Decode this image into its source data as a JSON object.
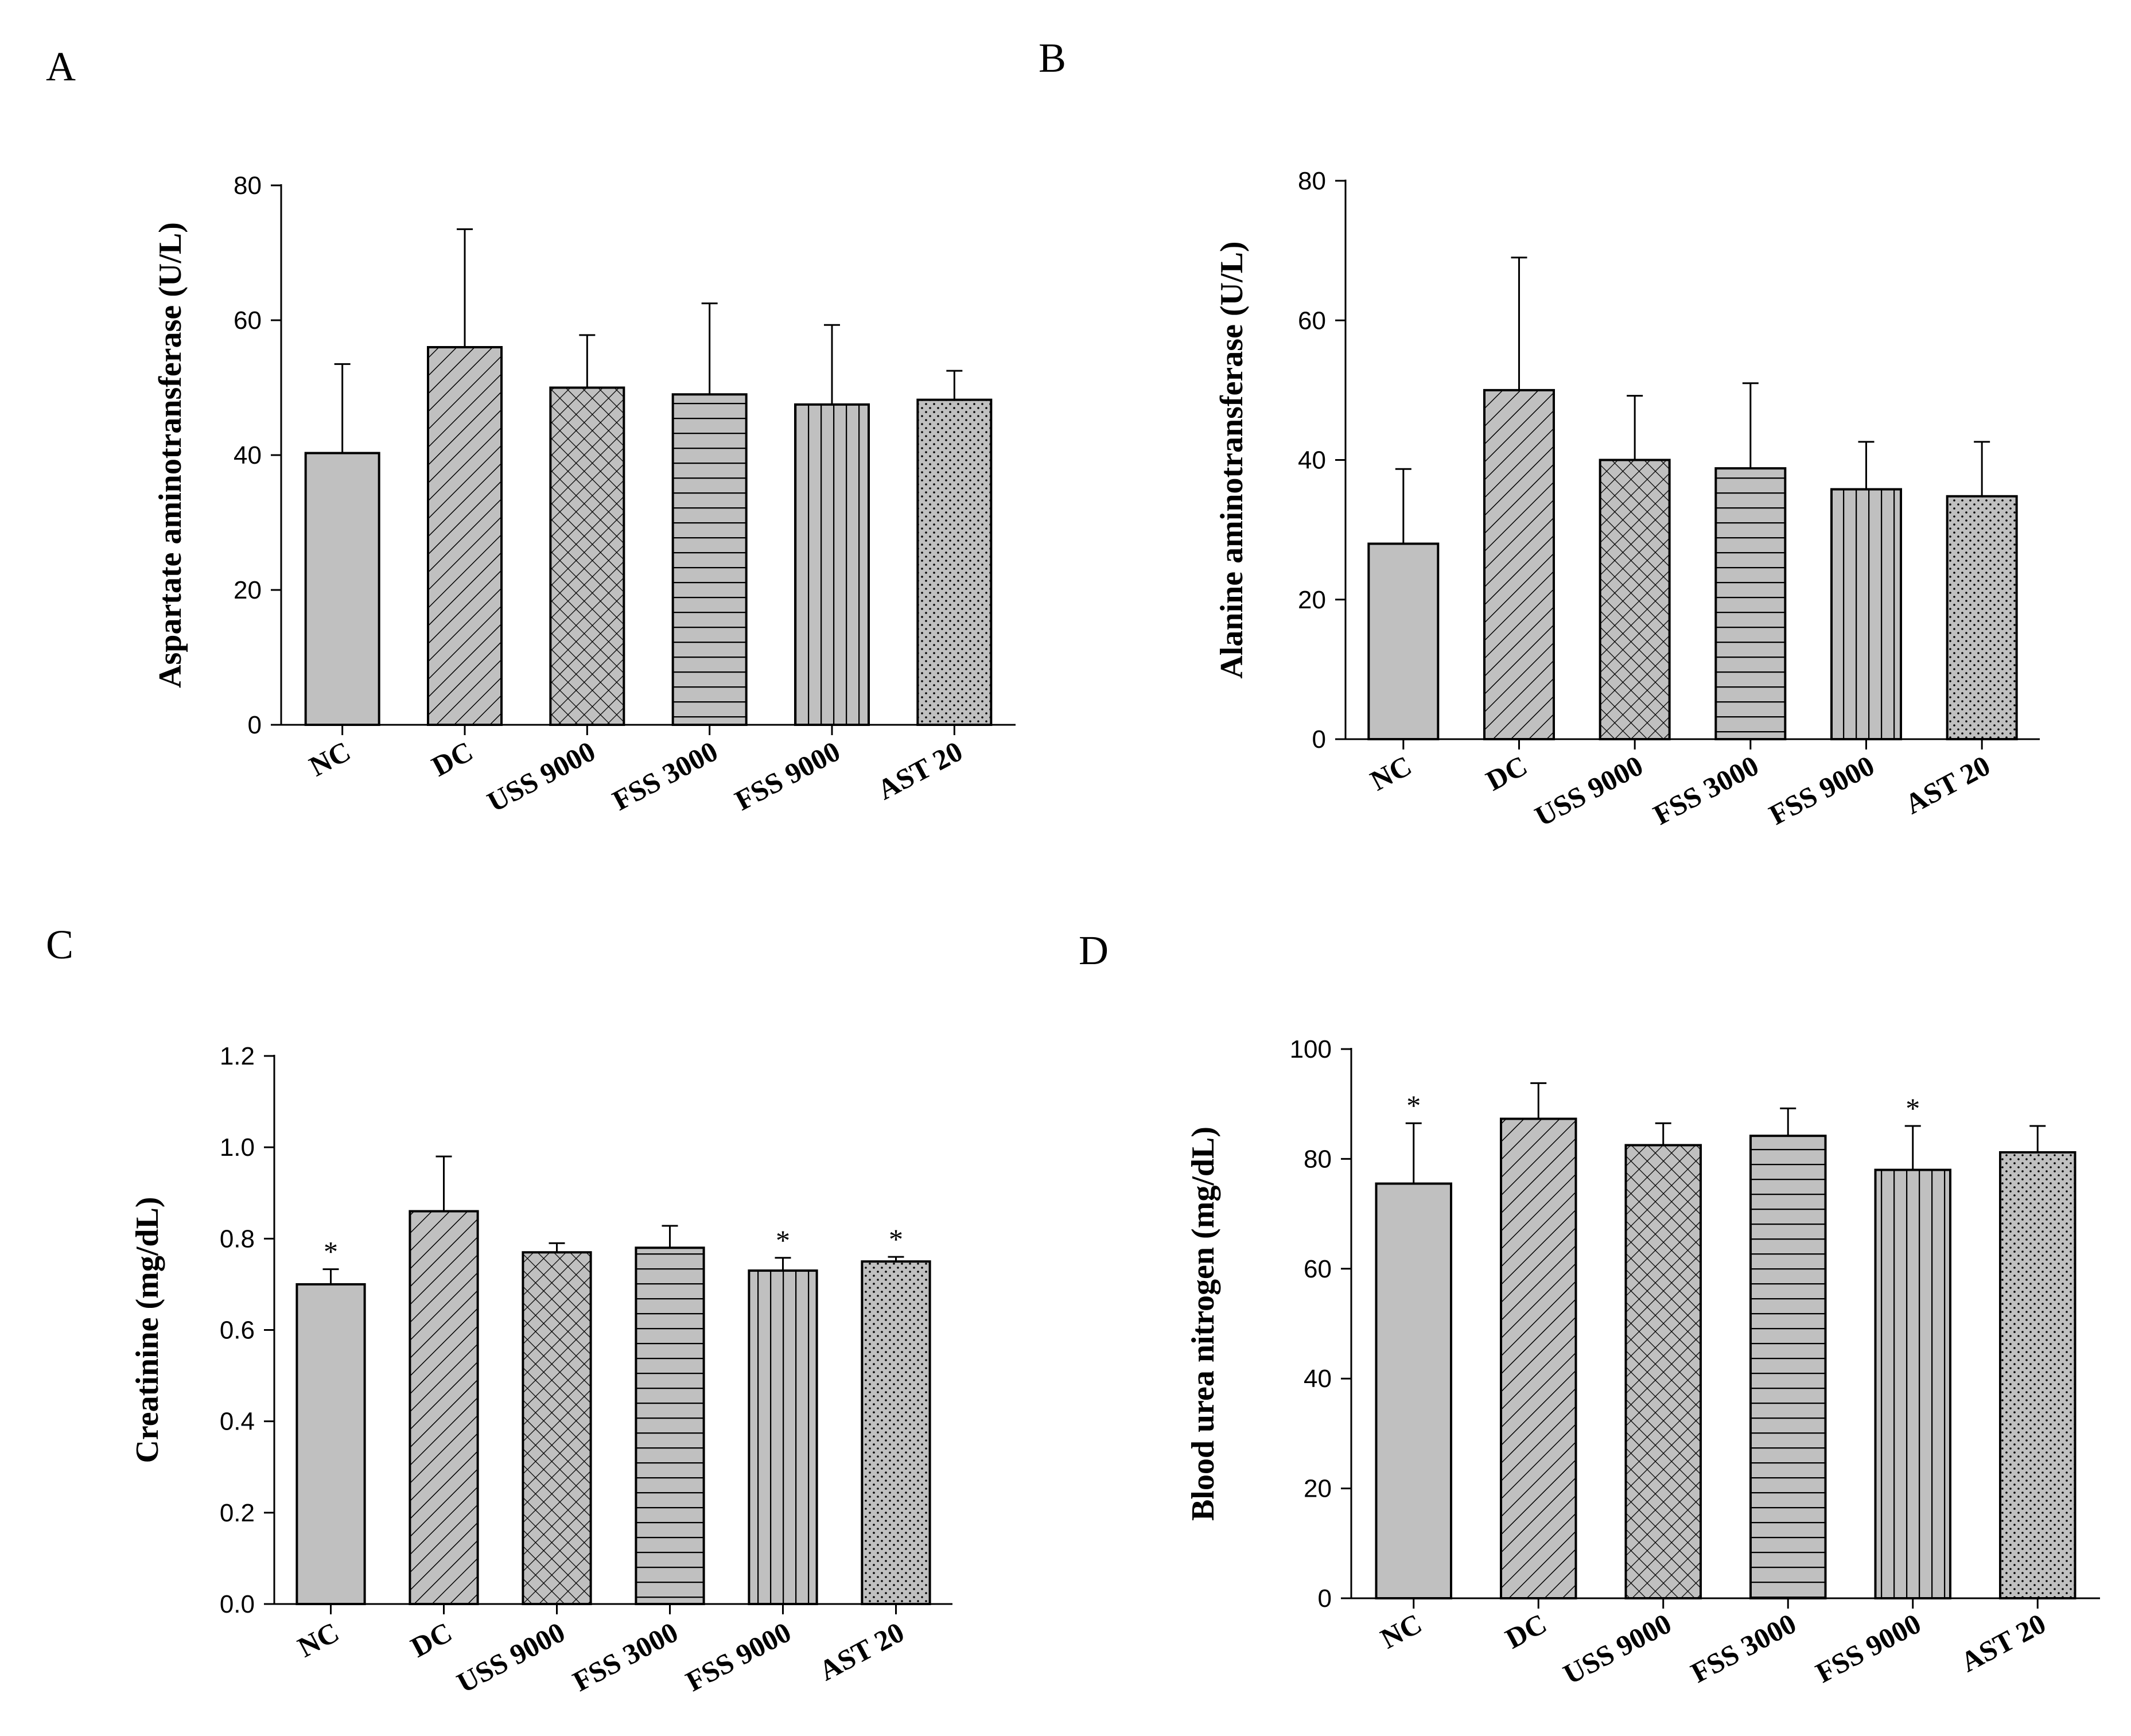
{
  "chart_data": [
    {
      "type": "bar",
      "panel": "A",
      "ylabel": "Aspartate aminotransferase (U/L)",
      "xlabel": "",
      "ylim": [
        0,
        80
      ],
      "yticks": [
        "0",
        "20",
        "40",
        "60",
        "80"
      ],
      "categories": [
        "NC",
        "DC",
        "USS 9000",
        "FSS 3000",
        "FSS 9000",
        "AST 20"
      ],
      "values": [
        40.3,
        56.0,
        50.0,
        49.0,
        47.5,
        48.2
      ],
      "errors": [
        13.2,
        17.5,
        7.8,
        13.5,
        11.8,
        4.3
      ],
      "significance": [
        "",
        "",
        "",
        "",
        "",
        ""
      ]
    },
    {
      "type": "bar",
      "panel": "B",
      "ylabel": "Alanine aminotransferase (U/L)",
      "xlabel": "",
      "ylim": [
        0,
        80
      ],
      "yticks": [
        "0",
        "20",
        "40",
        "60",
        "80"
      ],
      "categories": [
        "NC",
        "DC",
        "USS 9000",
        "FSS 3000",
        "FSS 9000",
        "AST 20"
      ],
      "values": [
        28.0,
        50.0,
        40.0,
        38.8,
        35.8,
        34.8
      ],
      "errors": [
        10.7,
        19.0,
        9.2,
        12.2,
        6.8,
        7.8
      ],
      "significance": [
        "",
        "",
        "",
        "",
        "",
        ""
      ]
    },
    {
      "type": "bar",
      "panel": "C",
      "ylabel": "Creatinine (mg/dL)",
      "xlabel": "",
      "ylim": [
        0,
        1.2
      ],
      "yticks": [
        "0.0",
        "0.2",
        "0.4",
        "0.6",
        "0.8",
        "1.0",
        "1.2"
      ],
      "categories": [
        "NC",
        "DC",
        "USS 9000",
        "FSS 3000",
        "FSS 9000",
        "AST 20"
      ],
      "values": [
        0.7,
        0.86,
        0.77,
        0.78,
        0.73,
        0.75
      ],
      "errors": [
        0.033,
        0.12,
        0.02,
        0.048,
        0.028,
        0.01
      ],
      "significance": [
        "*",
        "",
        "",
        "",
        "*",
        "*"
      ]
    },
    {
      "type": "bar",
      "panel": "D",
      "ylabel": "Blood urea nitrogen (mg/dL)",
      "xlabel": "",
      "ylim": [
        0,
        100
      ],
      "yticks": [
        "0",
        "20",
        "40",
        "60",
        "80",
        "100"
      ],
      "categories": [
        "NC",
        "DC",
        "USS 9000",
        "FSS 3000",
        "FSS 9000",
        "AST 20"
      ],
      "values": [
        75.5,
        87.3,
        82.5,
        84.2,
        78.0,
        81.2
      ],
      "errors": [
        11.0,
        6.5,
        4.0,
        5.0,
        8.0,
        4.8
      ],
      "significance": [
        "*",
        "",
        "",
        "",
        "*",
        ""
      ]
    }
  ],
  "colors": {
    "bar_fill": "#c0c0c0",
    "ink": "#000000",
    "background": "#ffffff"
  }
}
